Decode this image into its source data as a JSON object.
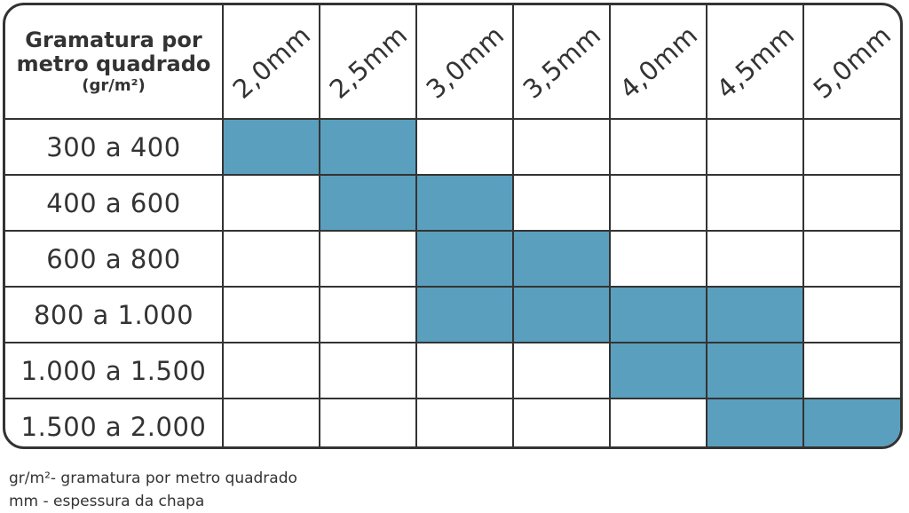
{
  "table": {
    "header": {
      "line1": "Gramatura por",
      "line2": "metro quadrado",
      "line3": "(gr/m²)"
    },
    "thicknesses": [
      "2,0mm",
      "2,5mm",
      "3,0mm",
      "3,5mm",
      "4,0mm",
      "4,5mm",
      "5,0mm"
    ],
    "rows": [
      {
        "label": "300 a 400",
        "cells": [
          1,
          1,
          0,
          0,
          0,
          0,
          0
        ]
      },
      {
        "label": "400 a 600",
        "cells": [
          0,
          1,
          1,
          0,
          0,
          0,
          0
        ]
      },
      {
        "label": "600 a 800",
        "cells": [
          0,
          0,
          1,
          1,
          0,
          0,
          0
        ]
      },
      {
        "label": "800 a 1.000",
        "cells": [
          0,
          0,
          1,
          1,
          1,
          1,
          0
        ]
      },
      {
        "label": "1.000 a 1.500",
        "cells": [
          0,
          0,
          0,
          0,
          1,
          1,
          0
        ]
      },
      {
        "label": "1.500 a 2.000",
        "cells": [
          0,
          0,
          0,
          0,
          0,
          1,
          1
        ]
      }
    ],
    "highlight_color": "#5a9fbd"
  },
  "legend": {
    "line1": "gr/m²- gramatura por metro quadrado",
    "line2": "mm - espessura da chapa"
  }
}
